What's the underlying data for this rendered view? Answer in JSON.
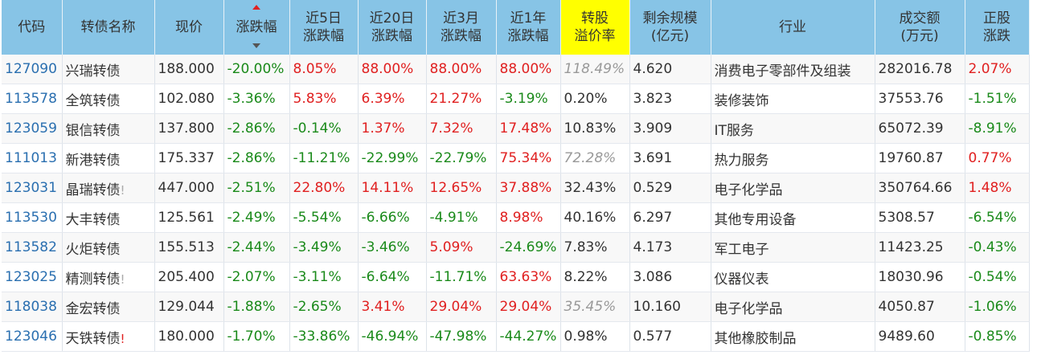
{
  "headers": [
    "代码",
    "转债名称",
    "现价",
    "涨跌幅",
    "近5日\n涨跌幅",
    "近20日\n涨跌幅",
    "近3月\n涨跌幅",
    "近1年\n涨跌幅",
    "转股\n溢价率",
    "剩余规模\n(亿元)",
    "行业",
    "成交额\n(万元)",
    "正股\n涨跌"
  ],
  "highlight_header": "转股溢价率",
  "sorted_column": "涨跌幅",
  "colors": {
    "header_bg": "#87c4e6",
    "highlight": "#ffff00",
    "up": "#e02020",
    "down": "#1a8a1a",
    "code": "#2a6fb0"
  },
  "rows": [
    {
      "code": "127090",
      "name": "兴瑞转债",
      "flag": "",
      "price": "188.000",
      "chg": "-20.00%",
      "d5": "8.05%",
      "d20": "88.00%",
      "m3": "88.00%",
      "y1": "88.00%",
      "premium": "118.49%",
      "premium_grey": true,
      "size": "4.620",
      "industry": "消费电子零部件及组装",
      "amount": "282016.78",
      "stock": "2.07%"
    },
    {
      "code": "113578",
      "name": "全筑转债",
      "flag": "",
      "price": "102.080",
      "chg": "-3.36%",
      "d5": "5.83%",
      "d20": "6.39%",
      "m3": "21.27%",
      "y1": "-3.19%",
      "premium": "0.20%",
      "premium_grey": false,
      "size": "3.823",
      "industry": "装修装饰",
      "amount": "37553.76",
      "stock": "-1.51%"
    },
    {
      "code": "123059",
      "name": "银信转债",
      "flag": "",
      "price": "137.800",
      "chg": "-2.86%",
      "d5": "-0.14%",
      "d20": "1.37%",
      "m3": "7.32%",
      "y1": "17.48%",
      "premium": "10.83%",
      "premium_grey": false,
      "size": "3.909",
      "industry": "IT服务",
      "amount": "65072.39",
      "stock": "-8.91%"
    },
    {
      "code": "111013",
      "name": "新港转债",
      "flag": "",
      "price": "175.337",
      "chg": "-2.86%",
      "d5": "-11.21%",
      "d20": "-22.99%",
      "m3": "-22.79%",
      "y1": "75.34%",
      "premium": "72.28%",
      "premium_grey": true,
      "size": "3.691",
      "industry": "热力服务",
      "amount": "19760.87",
      "stock": "0.77%"
    },
    {
      "code": "123031",
      "name": "晶瑞转债",
      "flag": "!",
      "price": "447.000",
      "chg": "-2.51%",
      "d5": "22.80%",
      "d20": "14.11%",
      "m3": "12.65%",
      "y1": "37.88%",
      "premium": "32.43%",
      "premium_grey": false,
      "size": "0.529",
      "industry": "电子化学品",
      "amount": "350764.66",
      "stock": "1.48%"
    },
    {
      "code": "113530",
      "name": "大丰转债",
      "flag": "",
      "price": "125.561",
      "chg": "-2.49%",
      "d5": "-5.54%",
      "d20": "-6.66%",
      "m3": "-4.91%",
      "y1": "8.98%",
      "premium": "40.16%",
      "premium_grey": false,
      "size": "6.297",
      "industry": "其他专用设备",
      "amount": "5308.57",
      "stock": "-6.54%"
    },
    {
      "code": "113582",
      "name": "火炬转债",
      "flag": "",
      "price": "155.513",
      "chg": "-2.44%",
      "d5": "-3.49%",
      "d20": "-3.46%",
      "m3": "5.09%",
      "y1": "-24.69%",
      "premium": "7.83%",
      "premium_grey": false,
      "size": "4.173",
      "industry": "军工电子",
      "amount": "11423.25",
      "stock": "-0.43%"
    },
    {
      "code": "123025",
      "name": "精测转债",
      "flag": "!",
      "price": "205.400",
      "chg": "-2.07%",
      "d5": "-3.11%",
      "d20": "-6.64%",
      "m3": "-11.71%",
      "y1": "63.63%",
      "premium": "8.22%",
      "premium_grey": false,
      "size": "3.086",
      "industry": "仪器仪表",
      "amount": "18030.96",
      "stock": "-0.54%"
    },
    {
      "code": "118038",
      "name": "金宏转债",
      "flag": "",
      "price": "129.044",
      "chg": "-1.88%",
      "d5": "-2.65%",
      "d20": "3.41%",
      "m3": "29.04%",
      "y1": "29.04%",
      "premium": "35.45%",
      "premium_grey": true,
      "size": "10.160",
      "industry": "电子化学品",
      "amount": "4050.87",
      "stock": "-1.06%"
    },
    {
      "code": "123046",
      "name": "天铁转债",
      "flag": "!",
      "flag_red": true,
      "price": "180.000",
      "chg": "-1.70%",
      "d5": "-33.86%",
      "d20": "-46.94%",
      "m3": "-47.98%",
      "y1": "-44.27%",
      "premium": "0.98%",
      "premium_grey": false,
      "size": "0.577",
      "industry": "其他橡胶制品",
      "amount": "9489.60",
      "stock": "-0.85%"
    }
  ]
}
